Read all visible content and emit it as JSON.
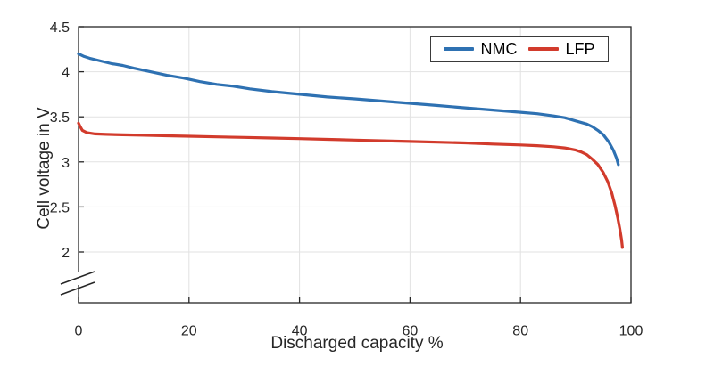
{
  "figure": {
    "background": "#ffffff",
    "axis_color": "#262626",
    "grid_color": "#e2e2e2"
  },
  "chart_data": {
    "type": "line",
    "title": "",
    "xlabel": "Discharged capacity %",
    "ylabel": "Cell voltage in V",
    "xlim": [
      0,
      100
    ],
    "ylim_visible": [
      2,
      4.5
    ],
    "y_axis_break_below": 2,
    "grid": true,
    "x_ticks": [
      0,
      20,
      40,
      60,
      80,
      100
    ],
    "x_tick_labels": [
      "0",
      "20",
      "40",
      "60",
      "80",
      "100"
    ],
    "y_ticks": [
      2,
      2.5,
      3,
      3.5,
      4,
      4.5
    ],
    "y_tick_labels": [
      "2",
      "2.5",
      "3",
      "3.5",
      "4",
      "4.5"
    ],
    "legend": {
      "position": "top-right",
      "entries": [
        {
          "label": "NMC",
          "color": "#2e71b2"
        },
        {
          "label": "LFP",
          "color": "#d23b2c"
        }
      ]
    },
    "series": [
      {
        "name": "NMC",
        "color": "#2e71b2",
        "points": [
          [
            0,
            4.2
          ],
          [
            1,
            4.17
          ],
          [
            2,
            4.15
          ],
          [
            4,
            4.12
          ],
          [
            6,
            4.09
          ],
          [
            8,
            4.07
          ],
          [
            10,
            4.04
          ],
          [
            13,
            4.0
          ],
          [
            16,
            3.96
          ],
          [
            19,
            3.93
          ],
          [
            22,
            3.89
          ],
          [
            25,
            3.86
          ],
          [
            28,
            3.84
          ],
          [
            31,
            3.81
          ],
          [
            35,
            3.78
          ],
          [
            40,
            3.75
          ],
          [
            45,
            3.72
          ],
          [
            50,
            3.7
          ],
          [
            55,
            3.675
          ],
          [
            60,
            3.65
          ],
          [
            65,
            3.625
          ],
          [
            70,
            3.6
          ],
          [
            75,
            3.575
          ],
          [
            80,
            3.55
          ],
          [
            83,
            3.535
          ],
          [
            86,
            3.51
          ],
          [
            88,
            3.49
          ],
          [
            90,
            3.455
          ],
          [
            92,
            3.42
          ],
          [
            93,
            3.39
          ],
          [
            94,
            3.35
          ],
          [
            95,
            3.3
          ],
          [
            96,
            3.22
          ],
          [
            96.8,
            3.13
          ],
          [
            97.4,
            3.04
          ],
          [
            97.7,
            2.97
          ]
        ]
      },
      {
        "name": "LFP",
        "color": "#d23b2c",
        "points": [
          [
            0,
            3.43
          ],
          [
            0.3,
            3.39
          ],
          [
            0.7,
            3.35
          ],
          [
            1.5,
            3.325
          ],
          [
            3,
            3.31
          ],
          [
            5,
            3.305
          ],
          [
            8,
            3.3
          ],
          [
            12,
            3.295
          ],
          [
            16,
            3.29
          ],
          [
            20,
            3.285
          ],
          [
            25,
            3.278
          ],
          [
            30,
            3.272
          ],
          [
            35,
            3.265
          ],
          [
            40,
            3.258
          ],
          [
            45,
            3.25
          ],
          [
            50,
            3.242
          ],
          [
            55,
            3.234
          ],
          [
            60,
            3.226
          ],
          [
            65,
            3.218
          ],
          [
            70,
            3.21
          ],
          [
            75,
            3.198
          ],
          [
            80,
            3.188
          ],
          [
            83,
            3.18
          ],
          [
            86,
            3.168
          ],
          [
            88,
            3.155
          ],
          [
            90,
            3.13
          ],
          [
            91,
            3.11
          ],
          [
            92,
            3.08
          ],
          [
            93,
            3.03
          ],
          [
            94,
            2.97
          ],
          [
            95,
            2.88
          ],
          [
            95.8,
            2.78
          ],
          [
            96.5,
            2.66
          ],
          [
            97.1,
            2.52
          ],
          [
            97.6,
            2.38
          ],
          [
            98,
            2.25
          ],
          [
            98.3,
            2.13
          ],
          [
            98.45,
            2.05
          ]
        ]
      }
    ]
  }
}
